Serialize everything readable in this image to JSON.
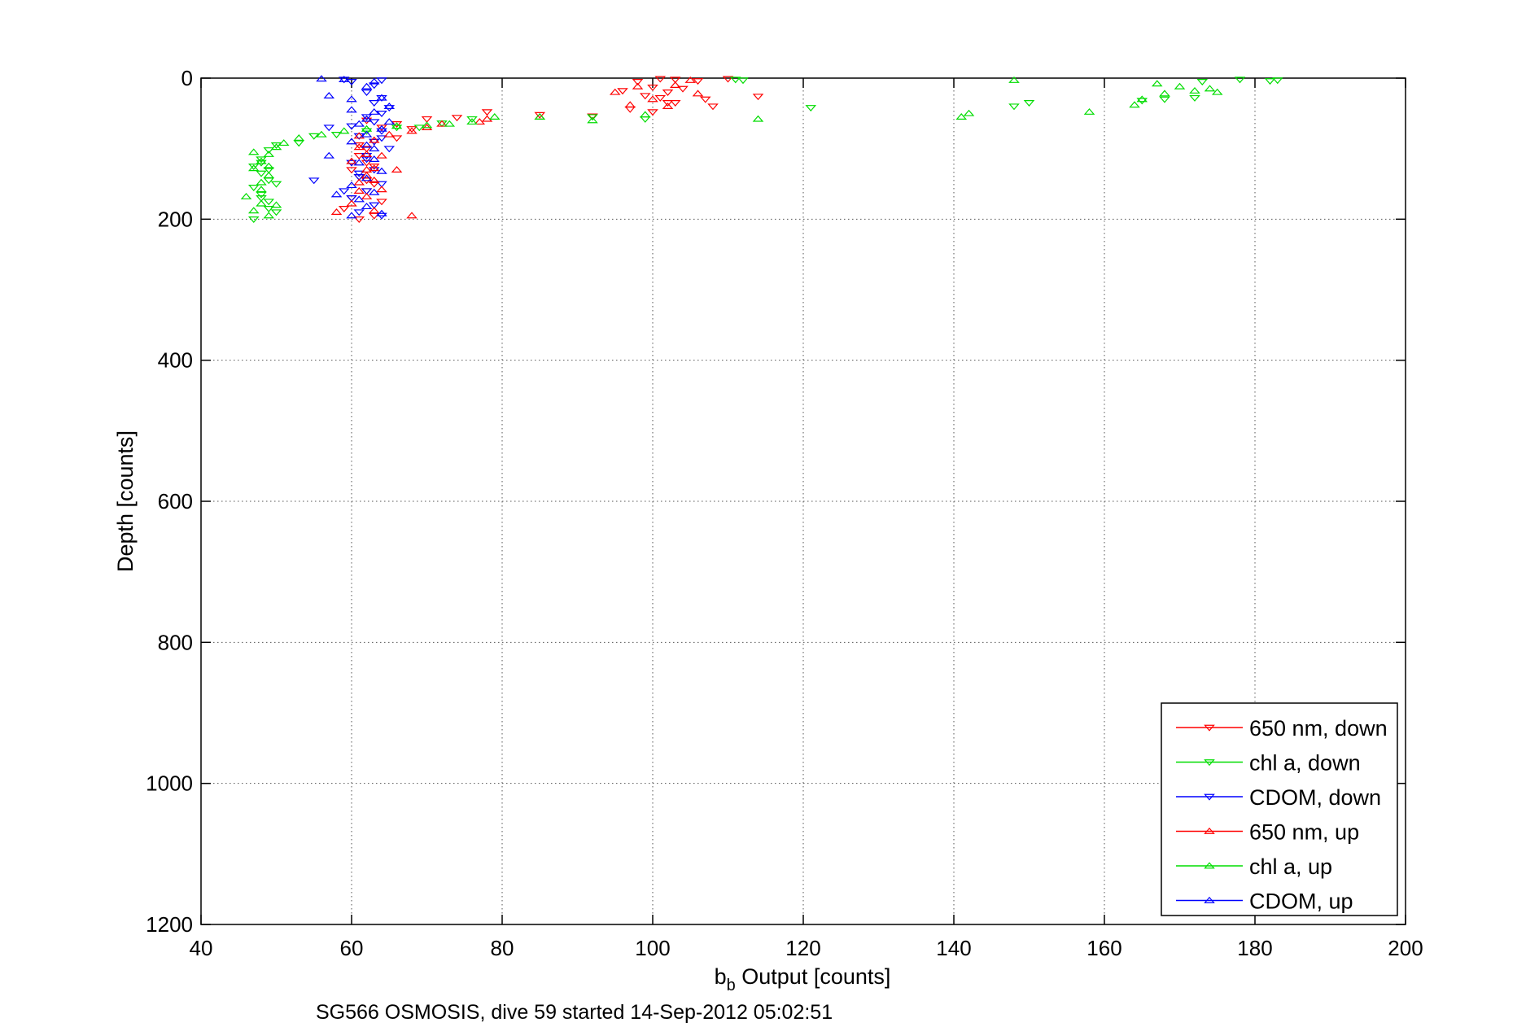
{
  "chart_data": {
    "type": "scatter",
    "title": "",
    "xlabel_main": "b",
    "xlabel_sub": "b",
    "xlabel_rest": " Output [counts]",
    "ylabel": "Depth [counts]",
    "caption": "SG566 OSMOSIS, dive 59 started 14-Sep-2012 05:02:51",
    "xlim": [
      40,
      200
    ],
    "ylim": [
      0,
      1200
    ],
    "y_reversed": true,
    "grid": true,
    "legend_position": "bottom-right",
    "x_ticks": [
      "40",
      "60",
      "80",
      "100",
      "120",
      "140",
      "160",
      "180",
      "200"
    ],
    "y_ticks": [
      "0",
      "200",
      "400",
      "600",
      "800",
      "1000",
      "1200"
    ],
    "series": [
      {
        "name": "650 nm, down",
        "color": "#ff0000",
        "marker": "triangle-down",
        "points": [
          [
            101,
            1
          ],
          [
            103,
            2
          ],
          [
            106,
            4
          ],
          [
            110,
            1
          ],
          [
            98,
            5
          ],
          [
            100,
            13
          ],
          [
            102,
            20
          ],
          [
            104,
            15
          ],
          [
            96,
            18
          ],
          [
            99,
            25
          ],
          [
            101,
            28
          ],
          [
            107,
            30
          ],
          [
            103,
            35
          ],
          [
            108,
            40
          ],
          [
            97,
            44
          ],
          [
            100,
            48
          ],
          [
            102,
            35
          ],
          [
            114,
            26
          ],
          [
            85,
            52
          ],
          [
            92,
            54
          ],
          [
            78,
            48
          ],
          [
            74,
            56
          ],
          [
            70,
            58
          ],
          [
            68,
            72
          ],
          [
            66,
            85
          ],
          [
            63,
            90
          ],
          [
            62,
            100
          ],
          [
            61,
            110
          ],
          [
            62,
            120
          ],
          [
            60,
            130
          ],
          [
            61,
            140
          ],
          [
            63,
            150
          ],
          [
            62,
            160
          ],
          [
            64,
            175
          ],
          [
            59,
            185
          ],
          [
            63,
            195
          ],
          [
            61,
            200
          ],
          [
            60,
            170
          ],
          [
            62,
            145
          ],
          [
            63,
            125
          ],
          [
            61,
            95
          ],
          [
            64,
            70
          ],
          [
            62,
            60
          ],
          [
            66,
            65
          ]
        ]
      },
      {
        "name": "chl a, down",
        "color": "#00dd00",
        "marker": "triangle-down",
        "points": [
          [
            111,
            2
          ],
          [
            112,
            3
          ],
          [
            178,
            2
          ],
          [
            182,
            4
          ],
          [
            183,
            3
          ],
          [
            173,
            5
          ],
          [
            172,
            28
          ],
          [
            168,
            30
          ],
          [
            165,
            32
          ],
          [
            150,
            35
          ],
          [
            148,
            40
          ],
          [
            121,
            42
          ],
          [
            99,
            58
          ],
          [
            92,
            55
          ],
          [
            76,
            58
          ],
          [
            72,
            64
          ],
          [
            69,
            70
          ],
          [
            66,
            70
          ],
          [
            62,
            75
          ],
          [
            58,
            80
          ],
          [
            55,
            82
          ],
          [
            53,
            92
          ],
          [
            50,
            95
          ],
          [
            49,
            102
          ],
          [
            48,
            115
          ],
          [
            47,
            125
          ],
          [
            48,
            135
          ],
          [
            49,
            145
          ],
          [
            47,
            155
          ],
          [
            48,
            165
          ],
          [
            49,
            175
          ],
          [
            50,
            190
          ],
          [
            47,
            200
          ],
          [
            49,
            185
          ],
          [
            48,
            170
          ],
          [
            50,
            150
          ],
          [
            49,
            130
          ],
          [
            48,
            120
          ]
        ]
      },
      {
        "name": "CDOM, down",
        "color": "#0000ff",
        "marker": "triangle-down",
        "points": [
          [
            59,
            2
          ],
          [
            60,
            5
          ],
          [
            64,
            3
          ],
          [
            63,
            10
          ],
          [
            62,
            20
          ],
          [
            64,
            28
          ],
          [
            63,
            35
          ],
          [
            65,
            42
          ],
          [
            64,
            50
          ],
          [
            62,
            55
          ],
          [
            63,
            62
          ],
          [
            60,
            68
          ],
          [
            64,
            75
          ],
          [
            61,
            82
          ],
          [
            63,
            90
          ],
          [
            65,
            100
          ],
          [
            62,
            110
          ],
          [
            60,
            120
          ],
          [
            63,
            130
          ],
          [
            61,
            140
          ],
          [
            64,
            150
          ],
          [
            62,
            160
          ],
          [
            60,
            170
          ],
          [
            63,
            180
          ],
          [
            61,
            190
          ],
          [
            64,
            195
          ],
          [
            59,
            160
          ],
          [
            62,
            115
          ],
          [
            61,
            135
          ],
          [
            64,
            85
          ],
          [
            57,
            70
          ],
          [
            55,
            145
          ]
        ]
      },
      {
        "name": "650 nm, up",
        "color": "#ff0000",
        "marker": "triangle-up",
        "points": [
          [
            105,
            3
          ],
          [
            103,
            10
          ],
          [
            98,
            12
          ],
          [
            95,
            20
          ],
          [
            100,
            30
          ],
          [
            102,
            40
          ],
          [
            97,
            38
          ],
          [
            106,
            22
          ],
          [
            85,
            55
          ],
          [
            78,
            58
          ],
          [
            77,
            62
          ],
          [
            72,
            65
          ],
          [
            70,
            70
          ],
          [
            68,
            75
          ],
          [
            65,
            80
          ],
          [
            63,
            88
          ],
          [
            61,
            98
          ],
          [
            62,
            108
          ],
          [
            60,
            118
          ],
          [
            63,
            128
          ],
          [
            62,
            138
          ],
          [
            61,
            148
          ],
          [
            64,
            158
          ],
          [
            62,
            168
          ],
          [
            60,
            178
          ],
          [
            63,
            188
          ],
          [
            68,
            195
          ],
          [
            58,
            190
          ],
          [
            61,
            160
          ],
          [
            63,
            145
          ],
          [
            62,
            130
          ],
          [
            64,
            110
          ],
          [
            66,
            130
          ],
          [
            61,
            82
          ]
        ]
      },
      {
        "name": "chl a, up",
        "color": "#00dd00",
        "marker": "triangle-up",
        "points": [
          [
            148,
            3
          ],
          [
            167,
            8
          ],
          [
            170,
            12
          ],
          [
            172,
            18
          ],
          [
            174,
            15
          ],
          [
            175,
            20
          ],
          [
            168,
            22
          ],
          [
            165,
            30
          ],
          [
            164,
            38
          ],
          [
            158,
            48
          ],
          [
            142,
            50
          ],
          [
            141,
            55
          ],
          [
            114,
            58
          ],
          [
            99,
            52
          ],
          [
            92,
            60
          ],
          [
            85,
            55
          ],
          [
            79,
            55
          ],
          [
            76,
            62
          ],
          [
            73,
            65
          ],
          [
            70,
            67
          ],
          [
            66,
            68
          ],
          [
            62,
            72
          ],
          [
            59,
            75
          ],
          [
            56,
            80
          ],
          [
            53,
            85
          ],
          [
            51,
            92
          ],
          [
            50,
            98
          ],
          [
            49,
            108
          ],
          [
            48,
            118
          ],
          [
            47,
            128
          ],
          [
            49,
            138
          ],
          [
            48,
            148
          ],
          [
            46,
            168
          ],
          [
            48,
            178
          ],
          [
            47,
            188
          ],
          [
            49,
            195
          ],
          [
            50,
            180
          ],
          [
            48,
            158
          ],
          [
            47,
            105
          ],
          [
            49,
            125
          ]
        ]
      },
      {
        "name": "CDOM, up",
        "color": "#0000ff",
        "marker": "triangle-up",
        "points": [
          [
            56,
            1
          ],
          [
            59,
            2
          ],
          [
            63,
            5
          ],
          [
            62,
            12
          ],
          [
            57,
            25
          ],
          [
            60,
            30
          ],
          [
            64,
            28
          ],
          [
            65,
            40
          ],
          [
            63,
            48
          ],
          [
            62,
            58
          ],
          [
            61,
            65
          ],
          [
            64,
            72
          ],
          [
            62,
            80
          ],
          [
            60,
            90
          ],
          [
            63,
            100
          ],
          [
            57,
            110
          ],
          [
            61,
            120
          ],
          [
            64,
            132
          ],
          [
            62,
            142
          ],
          [
            60,
            152
          ],
          [
            63,
            162
          ],
          [
            61,
            172
          ],
          [
            62,
            182
          ],
          [
            64,
            192
          ],
          [
            60,
            195
          ],
          [
            58,
            165
          ],
          [
            63,
            115
          ],
          [
            62,
            95
          ],
          [
            65,
            62
          ],
          [
            60,
            45
          ]
        ]
      }
    ]
  }
}
